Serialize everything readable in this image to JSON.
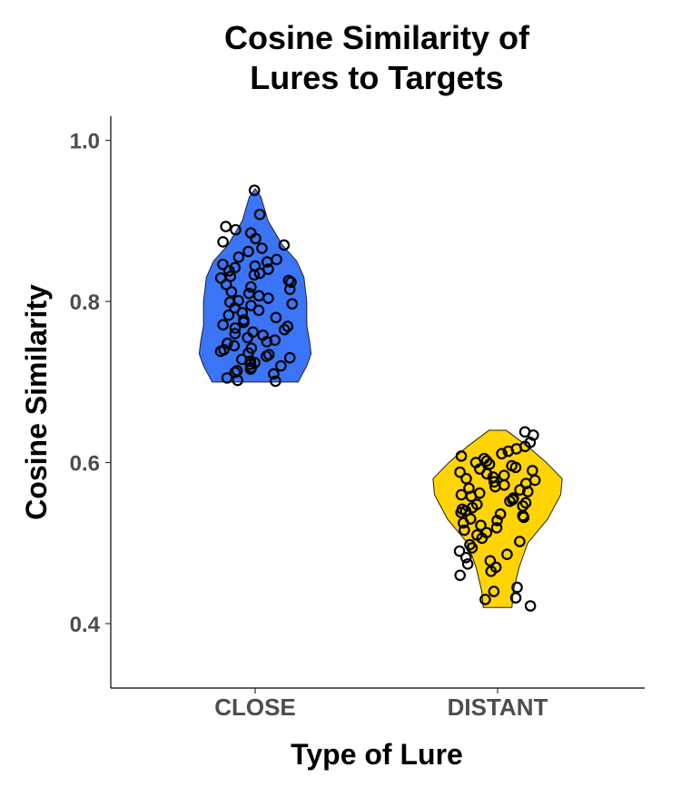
{
  "chart_data": {
    "type": "violin",
    "title_lines": [
      "Cosine Similarity of",
      "Lures to Targets"
    ],
    "xlabel": "Type of Lure",
    "ylabel": "Cosine Similarity",
    "categories": [
      "CLOSE",
      "DISTANT"
    ],
    "yticks": [
      "0.4",
      "0.6",
      "0.8",
      "1.0"
    ],
    "ylim": [
      0.32,
      1.03
    ],
    "grid": false,
    "legend": "none",
    "colors": {
      "CLOSE": "#3a75f8",
      "DISTANT": "#ffd400",
      "points": "#000000"
    },
    "violins": [
      {
        "category": "CLOSE",
        "range": [
          0.7,
          0.94
        ],
        "density": [
          [
            0.7,
            0.6
          ],
          [
            0.72,
            0.72
          ],
          [
            0.735,
            0.78
          ],
          [
            0.75,
            0.76
          ],
          [
            0.77,
            0.72
          ],
          [
            0.8,
            0.72
          ],
          [
            0.83,
            0.68
          ],
          [
            0.85,
            0.58
          ],
          [
            0.87,
            0.38
          ],
          [
            0.9,
            0.18
          ],
          [
            0.93,
            0.08
          ],
          [
            0.94,
            0.0
          ]
        ]
      },
      {
        "category": "DISTANT",
        "range": [
          0.42,
          0.64
        ],
        "density": [
          [
            0.42,
            0.2
          ],
          [
            0.44,
            0.22
          ],
          [
            0.47,
            0.3
          ],
          [
            0.5,
            0.42
          ],
          [
            0.53,
            0.7
          ],
          [
            0.56,
            0.88
          ],
          [
            0.58,
            0.9
          ],
          [
            0.6,
            0.68
          ],
          [
            0.62,
            0.42
          ],
          [
            0.64,
            0.12
          ]
        ]
      }
    ],
    "points": [
      {
        "category": "CLOSE",
        "values": [
          0.938,
          0.908,
          0.893,
          0.889,
          0.885,
          0.878,
          0.874,
          0.87,
          0.866,
          0.862,
          0.855,
          0.852,
          0.849,
          0.846,
          0.844,
          0.842,
          0.84,
          0.838,
          0.835,
          0.833,
          0.831,
          0.829,
          0.826,
          0.824,
          0.821,
          0.818,
          0.815,
          0.812,
          0.81,
          0.807,
          0.804,
          0.801,
          0.799,
          0.797,
          0.795,
          0.792,
          0.789,
          0.786,
          0.783,
          0.78,
          0.777,
          0.774,
          0.771,
          0.769,
          0.767,
          0.765,
          0.762,
          0.76,
          0.758,
          0.755,
          0.752,
          0.75,
          0.748,
          0.745,
          0.742,
          0.74,
          0.738,
          0.736,
          0.734,
          0.732,
          0.73,
          0.728,
          0.726,
          0.724,
          0.722,
          0.72,
          0.718,
          0.716,
          0.714,
          0.712,
          0.71,
          0.705,
          0.702,
          0.701
        ]
      },
      {
        "category": "DISTANT",
        "values": [
          0.638,
          0.634,
          0.625,
          0.62,
          0.617,
          0.614,
          0.611,
          0.608,
          0.605,
          0.602,
          0.6,
          0.598,
          0.596,
          0.594,
          0.592,
          0.59,
          0.588,
          0.586,
          0.584,
          0.582,
          0.58,
          0.578,
          0.576,
          0.574,
          0.572,
          0.57,
          0.568,
          0.566,
          0.564,
          0.562,
          0.56,
          0.558,
          0.556,
          0.554,
          0.552,
          0.55,
          0.548,
          0.546,
          0.544,
          0.542,
          0.54,
          0.538,
          0.536,
          0.534,
          0.532,
          0.53,
          0.528,
          0.525,
          0.522,
          0.519,
          0.516,
          0.513,
          0.51,
          0.506,
          0.502,
          0.498,
          0.494,
          0.49,
          0.486,
          0.482,
          0.478,
          0.474,
          0.47,
          0.465,
          0.46,
          0.445,
          0.44,
          0.432,
          0.43,
          0.422
        ]
      }
    ]
  }
}
